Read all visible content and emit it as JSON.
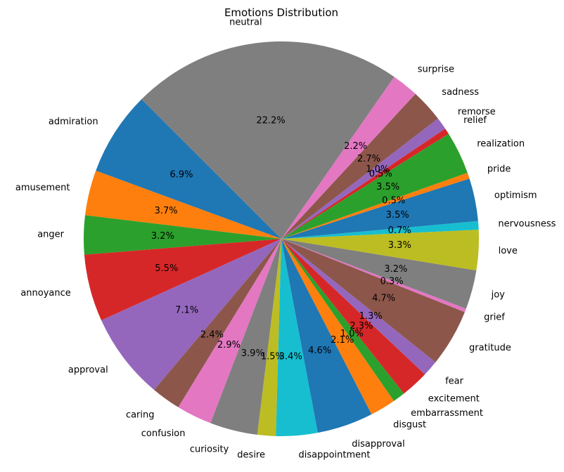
{
  "chart_data": {
    "type": "pie",
    "title": "Emotions Distribution",
    "categories": [
      "admiration",
      "amusement",
      "anger",
      "annoyance",
      "approval",
      "caring",
      "confusion",
      "curiosity",
      "desire",
      "disappointment",
      "disapproval",
      "disgust",
      "embarrassment",
      "excitement",
      "fear",
      "gratitude",
      "grief",
      "joy",
      "love",
      "nervousness",
      "optimism",
      "pride",
      "realization",
      "relief",
      "remorse",
      "sadness",
      "surprise",
      "neutral"
    ],
    "values": [
      6.9,
      3.7,
      3.2,
      5.5,
      7.1,
      2.4,
      2.9,
      3.9,
      1.5,
      3.4,
      4.6,
      2.1,
      1.0,
      2.3,
      1.3,
      4.7,
      0.3,
      3.2,
      3.3,
      0.7,
      3.5,
      0.5,
      3.5,
      0.5,
      1.0,
      2.7,
      2.2,
      22.2
    ],
    "value_labels": [
      "6.9%",
      "3.7%",
      "3.2%",
      "5.5%",
      "7.1%",
      "2.4%",
      "2.9%",
      "3.9%",
      "1.5%",
      "3.4%",
      "4.6%",
      "2.1%",
      "1.0%",
      "2.3%",
      "1.3%",
      "4.7%",
      "0.3%",
      "3.2%",
      "3.3%",
      "0.7%",
      "3.5%",
      "0.5%",
      "3.5%",
      "0.5%",
      "1.0%",
      "2.7%",
      "2.2%",
      "22.2%"
    ],
    "colors": [
      "#1f77b4",
      "#ff7f0e",
      "#2ca02c",
      "#d62728",
      "#9467bd",
      "#8c564b",
      "#e377c2",
      "#7f7f7f",
      "#bcbd22",
      "#17becf"
    ],
    "start_angle_deg": 135,
    "direction": "counterclockwise",
    "legend": "none"
  }
}
